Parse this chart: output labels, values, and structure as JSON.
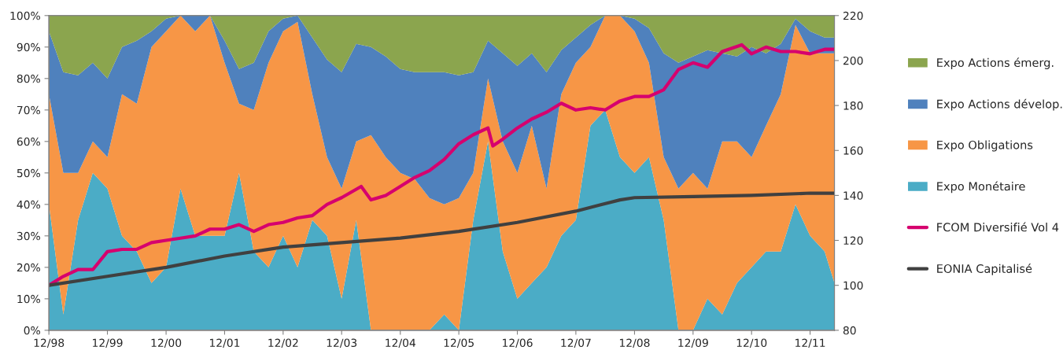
{
  "chart_data": {
    "type": "area",
    "stacked": true,
    "legend": "right",
    "grid": false,
    "x": [
      "1998-12",
      "1999-03",
      "1999-06",
      "1999-09",
      "1999-12",
      "2000-03",
      "2000-06",
      "2000-09",
      "2000-12",
      "2001-03",
      "2001-06",
      "2001-09",
      "2001-12",
      "2002-03",
      "2002-06",
      "2002-09",
      "2002-12",
      "2003-03",
      "2003-06",
      "2003-09",
      "2003-12",
      "2004-03",
      "2004-06",
      "2004-09",
      "2004-12",
      "2005-03",
      "2005-06",
      "2005-09",
      "2005-12",
      "2006-03",
      "2006-06",
      "2006-09",
      "2006-12",
      "2007-03",
      "2007-06",
      "2007-09",
      "2007-12",
      "2008-03",
      "2008-06",
      "2008-09",
      "2008-12",
      "2009-03",
      "2009-06",
      "2009-09",
      "2009-12",
      "2010-03",
      "2010-06",
      "2010-09",
      "2010-12",
      "2011-03",
      "2011-06",
      "2011-09",
      "2011-12",
      "2012-03",
      "2012-05"
    ],
    "series": [
      {
        "name": "Expo Monétaire",
        "color": "#4bacc6",
        "values": [
          40,
          5,
          35,
          50,
          45,
          30,
          25,
          15,
          20,
          45,
          30,
          30,
          30,
          50,
          25,
          20,
          30,
          20,
          35,
          30,
          10,
          35,
          0,
          0,
          0,
          0,
          0,
          5,
          0,
          35,
          60,
          25,
          10,
          15,
          20,
          30,
          35,
          65,
          70,
          55,
          50,
          55,
          35,
          0,
          0,
          10,
          5,
          15,
          20,
          25,
          25,
          40,
          30,
          25,
          15
        ]
      },
      {
        "name": "Expo Obligations",
        "color": "#f79646",
        "values": [
          35,
          45,
          15,
          10,
          10,
          45,
          47,
          75,
          75,
          55,
          65,
          70,
          55,
          22,
          45,
          65,
          65,
          78,
          40,
          25,
          35,
          25,
          62,
          55,
          50,
          48,
          42,
          35,
          42,
          15,
          20,
          35,
          40,
          50,
          25,
          45,
          50,
          25,
          30,
          45,
          45,
          30,
          20,
          45,
          50,
          35,
          55,
          45,
          35,
          40,
          50,
          57,
          58,
          63,
          73
        ]
      },
      {
        "name": "Expo Actions dévelop.",
        "color": "#4f81bd",
        "values": [
          20,
          32,
          31,
          25,
          25,
          15,
          20,
          5,
          4,
          0,
          5,
          0,
          7,
          11,
          15,
          10,
          4,
          2,
          18,
          31,
          37,
          31,
          28,
          32,
          33,
          34,
          40,
          42,
          39,
          32,
          12,
          28,
          34,
          23,
          37,
          14,
          8,
          7,
          0,
          0,
          4,
          11,
          33,
          40,
          37,
          44,
          28,
          27,
          35,
          23,
          16,
          2,
          7,
          5,
          5
        ]
      },
      {
        "name": "Expo Actions émerg.",
        "color": "#8ba54e",
        "values": [
          5,
          18,
          19,
          15,
          20,
          10,
          8,
          5,
          1,
          0,
          0,
          0,
          8,
          17,
          15,
          5,
          1,
          0,
          7,
          14,
          18,
          9,
          10,
          13,
          17,
          18,
          18,
          18,
          19,
          18,
          8,
          12,
          16,
          12,
          18,
          11,
          7,
          3,
          0,
          0,
          1,
          4,
          12,
          15,
          13,
          11,
          12,
          13,
          10,
          12,
          9,
          1,
          5,
          7,
          7
        ]
      },
      {
        "name": "FCOM Diversifié Vol 4",
        "type": "line",
        "axis": "y2",
        "color": "#d6006e",
        "x": [
          "1998-12",
          "1999-03",
          "1999-06",
          "1999-09",
          "1999-12",
          "2000-03",
          "2000-06",
          "2000-09",
          "2000-12",
          "2001-03",
          "2001-06",
          "2001-09",
          "2001-12",
          "2002-03",
          "2002-06",
          "2002-09",
          "2002-12",
          "2003-03",
          "2003-06",
          "2003-09",
          "2003-12",
          "2004-04",
          "2004-06",
          "2004-09",
          "2004-12",
          "2005-03",
          "2005-06",
          "2005-09",
          "2005-12",
          "2006-03",
          "2006-06",
          "2006-07",
          "2006-09",
          "2006-12",
          "2007-03",
          "2007-06",
          "2007-09",
          "2007-12",
          "2008-03",
          "2008-06",
          "2008-09",
          "2008-12",
          "2009-03",
          "2009-06",
          "2009-09",
          "2009-12",
          "2010-03",
          "2010-06",
          "2010-10",
          "2010-12",
          "2011-03",
          "2011-06",
          "2011-09",
          "2011-12",
          "2012-03",
          "2012-05"
        ],
        "values": [
          100,
          104,
          107,
          107,
          115,
          116,
          116,
          119,
          120,
          121,
          122,
          125,
          125,
          127,
          124,
          127,
          128,
          130,
          131,
          136,
          139,
          144,
          138,
          140,
          144,
          148,
          151,
          156,
          163,
          167,
          170,
          162,
          165,
          170,
          174,
          177,
          181,
          178,
          179,
          178,
          182,
          184,
          184,
          187,
          196,
          199,
          197,
          204,
          207,
          203,
          206,
          204,
          204,
          203,
          205,
          205
        ]
      },
      {
        "name": "EONIA Capitalisé",
        "type": "line",
        "axis": "y2",
        "color": "#404040",
        "x": [
          "1998-12",
          "1999-12",
          "2000-12",
          "2001-12",
          "2002-12",
          "2003-12",
          "2004-12",
          "2005-12",
          "2006-12",
          "2007-12",
          "2008-09",
          "2008-12",
          "2009-12",
          "2010-12",
          "2011-12",
          "2012-05"
        ],
        "values": [
          100,
          104,
          108,
          113,
          117,
          119,
          121,
          124,
          128,
          133,
          138,
          139,
          139.5,
          140,
          141,
          141
        ]
      }
    ],
    "xlim": [
      "1998-12",
      "2012-05"
    ],
    "xticks": [
      {
        "value": "1998-12",
        "label": "12/98"
      },
      {
        "value": "1999-12",
        "label": "12/99"
      },
      {
        "value": "2000-12",
        "label": "12/00"
      },
      {
        "value": "2001-12",
        "label": "12/01"
      },
      {
        "value": "2002-12",
        "label": "12/02"
      },
      {
        "value": "2003-12",
        "label": "12/03"
      },
      {
        "value": "2004-12",
        "label": "12/04"
      },
      {
        "value": "2005-12",
        "label": "12/05"
      },
      {
        "value": "2006-12",
        "label": "12/06"
      },
      {
        "value": "2007-12",
        "label": "12/07"
      },
      {
        "value": "2008-12",
        "label": "12/08"
      },
      {
        "value": "2009-12",
        "label": "12/09"
      },
      {
        "value": "2010-12",
        "label": "12/10"
      },
      {
        "value": "2011-12",
        "label": "12/11"
      }
    ],
    "ylim": [
      0,
      100
    ],
    "yticks": [
      {
        "value": 0,
        "label": "0%"
      },
      {
        "value": 10,
        "label": "10%"
      },
      {
        "value": 20,
        "label": "20%"
      },
      {
        "value": 30,
        "label": "30%"
      },
      {
        "value": 40,
        "label": "40%"
      },
      {
        "value": 50,
        "label": "50%"
      },
      {
        "value": 60,
        "label": "60%"
      },
      {
        "value": 70,
        "label": "70%"
      },
      {
        "value": 80,
        "label": "80%"
      },
      {
        "value": 90,
        "label": "90%"
      },
      {
        "value": 100,
        "label": "100%"
      }
    ],
    "y2lim": [
      80,
      220
    ],
    "y2ticks": [
      80,
      100,
      120,
      140,
      160,
      180,
      200,
      220
    ]
  }
}
